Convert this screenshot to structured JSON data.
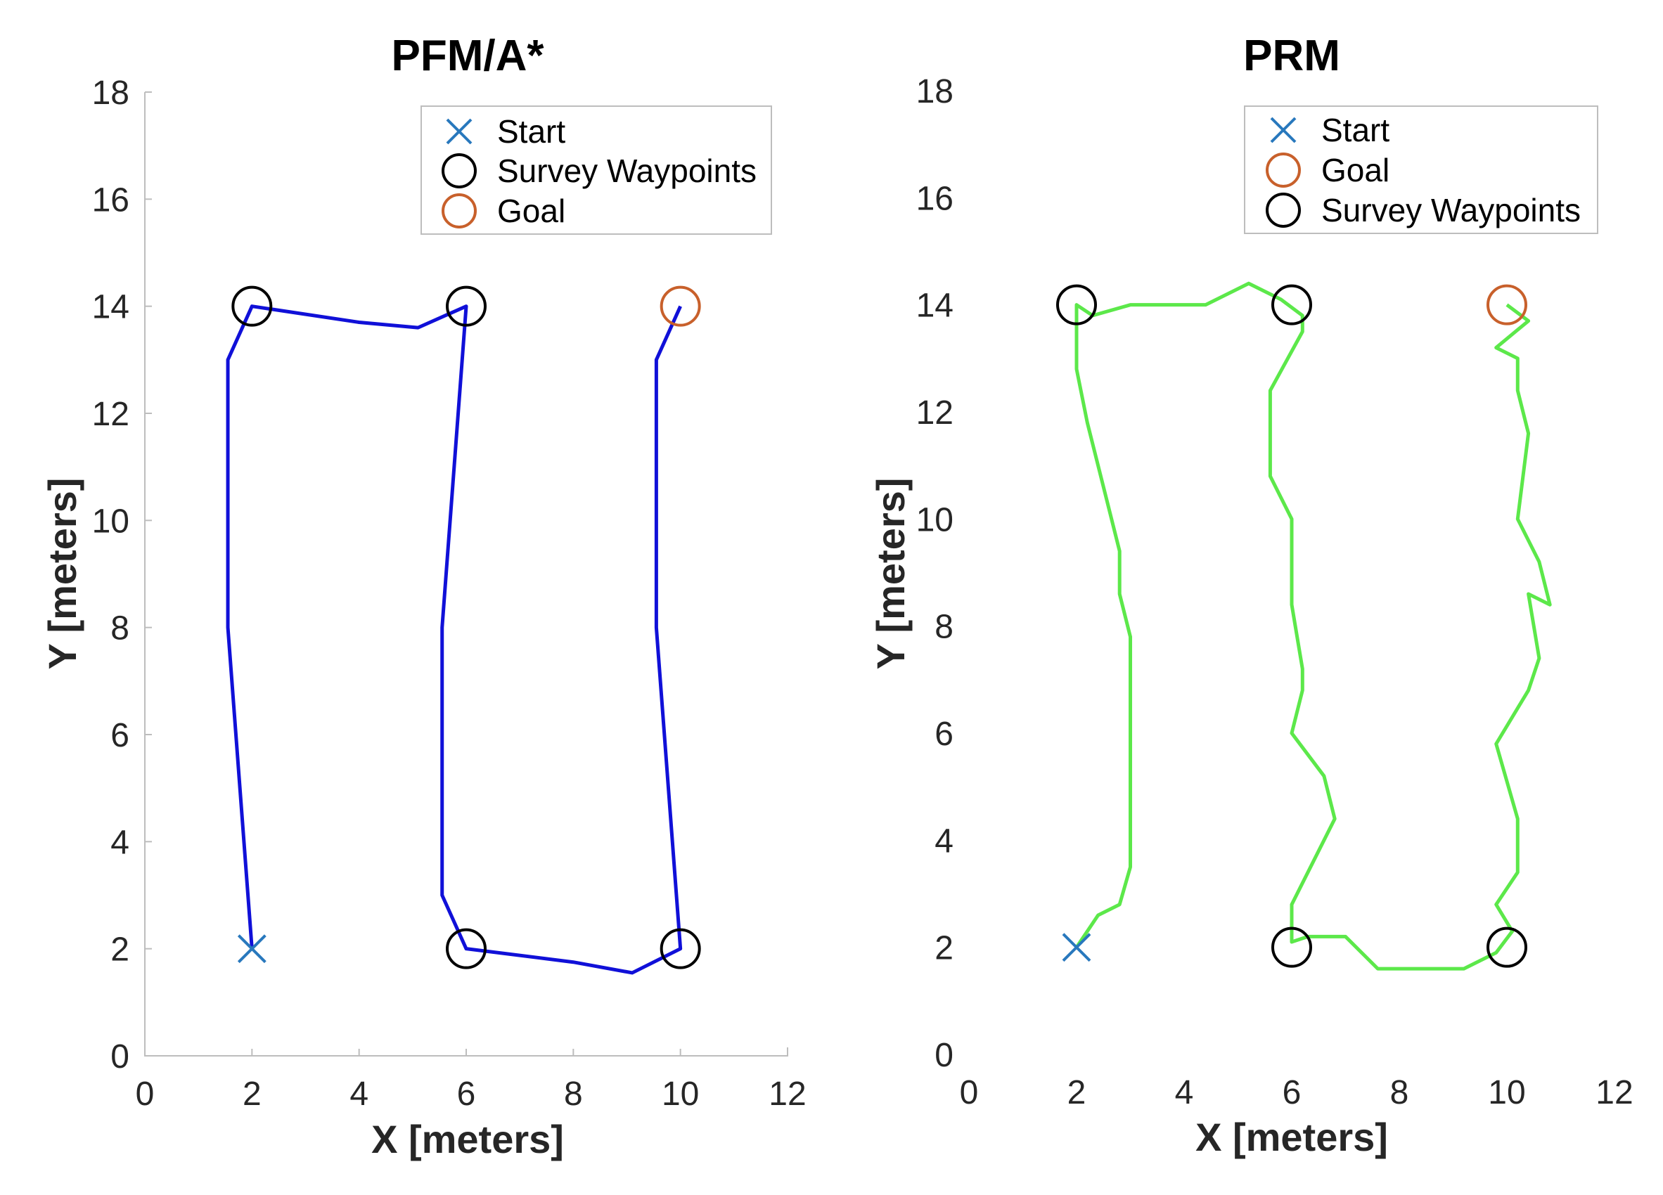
{
  "colors": {
    "start": "#2878bd",
    "goal": "#c8602b",
    "waypoint": "#000000",
    "pfm_path": "#1010d8",
    "prm_path": "#5ce84a"
  },
  "chart_data": [
    {
      "type": "line",
      "title": "PFM/A*",
      "xlabel": "X [meters]",
      "ylabel": "Y [meters]",
      "xlim": [
        0,
        12
      ],
      "ylim": [
        0,
        18
      ],
      "xticks": [
        0,
        2,
        4,
        6,
        8,
        10,
        12
      ],
      "yticks": [
        0,
        2,
        4,
        6,
        8,
        10,
        12,
        14,
        16,
        18
      ],
      "xtick_labels": [
        "0",
        "2",
        "4",
        "6",
        "8",
        "10",
        "12"
      ],
      "ytick_labels": [
        "0",
        "2",
        "4",
        "6",
        "8",
        "10",
        "12",
        "14",
        "16",
        "18"
      ],
      "legend_position": "top-right",
      "legend": [
        {
          "label": "Start",
          "marker": "x",
          "color_key": "start"
        },
        {
          "label": "Survey Waypoints",
          "marker": "o",
          "color_key": "waypoint"
        },
        {
          "label": "Goal",
          "marker": "o",
          "color_key": "goal"
        }
      ],
      "path": {
        "color_key": "pfm_path",
        "x": [
          2,
          1.55,
          1.55,
          2,
          4,
          5.1,
          6,
          5.55,
          5.55,
          6,
          8,
          9.1,
          10,
          9.55,
          9.55,
          10
        ],
        "y": [
          2,
          8,
          13,
          14,
          13.7,
          13.6,
          14,
          8,
          3,
          2,
          1.75,
          1.55,
          2,
          8,
          13,
          14
        ]
      },
      "start": {
        "x": 2,
        "y": 2
      },
      "waypoints": [
        {
          "x": 2,
          "y": 14
        },
        {
          "x": 6,
          "y": 14
        },
        {
          "x": 6,
          "y": 2
        },
        {
          "x": 10,
          "y": 2
        }
      ],
      "goal": {
        "x": 10,
        "y": 14
      }
    },
    {
      "type": "line",
      "title": "PRM",
      "xlabel": "X [meters]",
      "ylabel": "Y [meters]",
      "xlim": [
        0,
        12
      ],
      "ylim": [
        0,
        18
      ],
      "xticks": [
        0,
        2,
        4,
        6,
        8,
        10,
        12
      ],
      "yticks": [
        0,
        2,
        4,
        6,
        8,
        10,
        12,
        14,
        16,
        18
      ],
      "xtick_labels": [
        "0",
        "2",
        "4",
        "6",
        "8",
        "10",
        "12"
      ],
      "ytick_labels": [
        "0",
        "2",
        "4",
        "6",
        "8",
        "10",
        "12",
        "14",
        "16",
        "18"
      ],
      "legend_position": "top-right",
      "legend": [
        {
          "label": "Start",
          "marker": "x",
          "color_key": "start"
        },
        {
          "label": "Goal",
          "marker": "o",
          "color_key": "goal"
        },
        {
          "label": "Survey Waypoints",
          "marker": "o",
          "color_key": "waypoint"
        }
      ],
      "path": {
        "color_key": "prm_path",
        "x": [
          2,
          2.4,
          2.8,
          3.0,
          3.0,
          2.8,
          2.8,
          2.2,
          2.0,
          2.0,
          2.3,
          3.0,
          4.4,
          5.2,
          5.8,
          6.2,
          6.2,
          5.6,
          5.6,
          6.0,
          6.0,
          6.2,
          6.2,
          6.0,
          6.6,
          6.8,
          6.0,
          6.0,
          6.3,
          7.0,
          7.6,
          8.8,
          9.2,
          9.8,
          10.1,
          9.8,
          10.2,
          10.2,
          9.8,
          10.4,
          10.6,
          10.4,
          10.8,
          10.6,
          10.2,
          10.4,
          10.2,
          10.2,
          9.8,
          10.4,
          10.0
        ],
        "y": [
          2,
          2.6,
          2.8,
          3.5,
          7.8,
          8.6,
          9.4,
          11.8,
          12.8,
          14.0,
          13.8,
          14.0,
          14.0,
          14.4,
          14.1,
          13.8,
          13.5,
          12.4,
          10.8,
          10.0,
          8.4,
          7.2,
          6.8,
          6.0,
          5.2,
          4.4,
          2.8,
          2.1,
          2.2,
          2.2,
          1.6,
          1.6,
          1.6,
          1.9,
          2.3,
          2.8,
          3.4,
          4.4,
          5.8,
          6.8,
          7.4,
          8.6,
          8.4,
          9.2,
          10.0,
          11.6,
          12.4,
          13.0,
          13.2,
          13.7,
          14.0
        ]
      },
      "start": {
        "x": 2,
        "y": 2
      },
      "waypoints": [
        {
          "x": 2,
          "y": 14
        },
        {
          "x": 6,
          "y": 14
        },
        {
          "x": 6,
          "y": 2
        },
        {
          "x": 10,
          "y": 2
        }
      ],
      "goal": {
        "x": 10,
        "y": 14
      }
    }
  ]
}
